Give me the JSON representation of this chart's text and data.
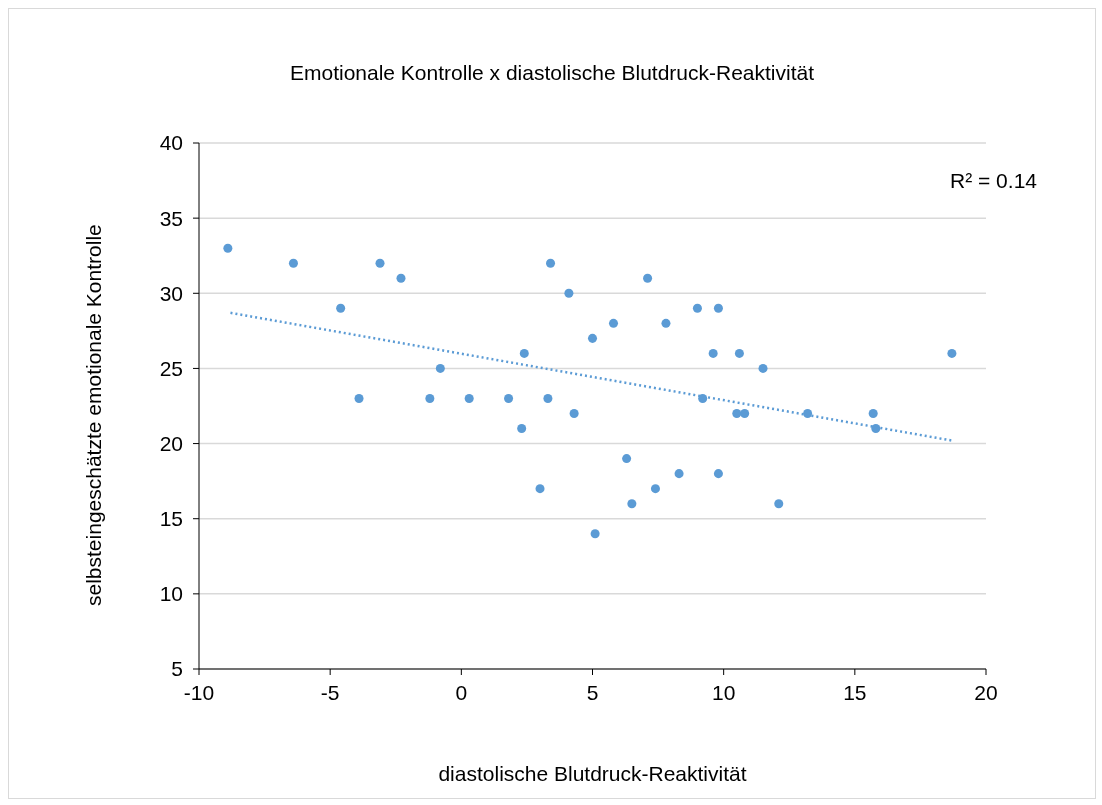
{
  "chart_data": {
    "type": "scatter",
    "title": "Emotionale Kontrolle x diastolische Blutdruck-Reaktivität",
    "xlabel": "diastolische Blutdruck-Reaktivität",
    "ylabel": "selbsteingeschätzte emotionale Kontrolle",
    "xlim": [
      -10,
      20
    ],
    "xticks": [
      -10,
      -5,
      0,
      5,
      10,
      15,
      20
    ],
    "ylim": [
      5,
      40
    ],
    "yticks": [
      5,
      10,
      15,
      20,
      25,
      30,
      35,
      40
    ],
    "grid": "y",
    "legend": false,
    "marker": "circle",
    "annotations": [
      "R² = 0.14"
    ],
    "series": [
      {
        "color": "#5b9bd5",
        "x": [
          -8.9,
          -6.4,
          -4.6,
          -3.9,
          -3.1,
          -2.3,
          -1.2,
          -0.8,
          0.3,
          1.8,
          2.3,
          2.4,
          3.0,
          3.3,
          3.4,
          4.1,
          4.3,
          5.0,
          5.1,
          5.8,
          6.3,
          6.5,
          7.1,
          7.4,
          7.8,
          8.3,
          9.0,
          9.2,
          9.6,
          9.8,
          9.8,
          10.6,
          10.5,
          10.8,
          11.5,
          12.1,
          13.2,
          15.7,
          15.8,
          18.7
        ],
        "values": [
          33,
          32,
          29,
          23,
          32,
          31,
          23,
          25,
          23,
          23,
          21,
          26,
          17,
          23,
          32,
          30,
          22,
          27,
          14,
          28,
          19,
          16,
          31,
          17,
          28,
          18,
          29,
          23,
          26,
          29,
          18,
          26,
          22,
          22,
          25,
          16,
          22,
          22,
          21,
          26
        ]
      },
      {
        "type": "line",
        "color": "#5b9bd5",
        "line_style": "dotted",
        "marker": "none",
        "x": [
          -8.8,
          18.7
        ],
        "values": [
          28.7,
          20.2
        ]
      }
    ]
  }
}
